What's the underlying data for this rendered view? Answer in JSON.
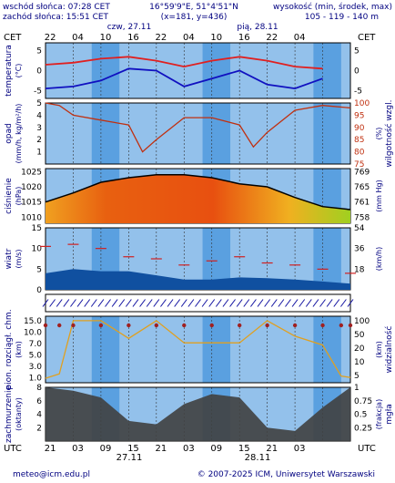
{
  "header": {
    "sunrise": "wschód słońca: 07:28 CET",
    "sunset": "zachód słońca: 15:51 CET",
    "coords": "16°59'9\"E, 51°4'51\"N",
    "grid": "(x=181, y=436)",
    "height_label": "wysokość (min, środek, max)",
    "height_values": "105 - 119 - 140 m"
  },
  "axes": {
    "top_tz": "CET",
    "bottom_tz": "UTC",
    "top_hours": [
      "22",
      "04",
      "10",
      "16",
      "22",
      "04",
      "10",
      "16",
      "22",
      "04"
    ],
    "bottom_hours": [
      "21",
      "03",
      "09",
      "15",
      "21",
      "03",
      "09",
      "15",
      "21",
      "03"
    ],
    "day_top_1": "czw, 27.11",
    "day_top_2": "pią, 28.11",
    "day_bottom_1": "27.11",
    "day_bottom_2": "28.11"
  },
  "footer": {
    "email": "meteo@icm.edu.pl",
    "copyright": "© 2007-2025 ICM, Uniwersytet Warszawski"
  },
  "colors": {
    "sky": "#5aa0e0",
    "night_band": "#d8d8d8",
    "temp_red": "#e02020",
    "temp_blue": "#1010c0",
    "pressure_line": "#000000",
    "humidity": "#c03010",
    "cloud_gray": "#404040",
    "fog": "#e0a020"
  },
  "chart_data": [
    {
      "type": "line",
      "panel": "temperature",
      "ylabel": "temperatura",
      "yunit": "(°C)",
      "ylim": [
        -7,
        7
      ],
      "ticks": [
        5,
        0,
        -5
      ],
      "hours": [
        0,
        6,
        12,
        18,
        24,
        30,
        36,
        42,
        48,
        54,
        60
      ],
      "series": [
        {
          "values": [
            1.5,
            2.0,
            3.0,
            3.5,
            2.5,
            1.0,
            2.5,
            3.5,
            2.5,
            1.0,
            0.5
          ]
        },
        {
          "values": [
            -4.5,
            -4.0,
            -2.5,
            0.5,
            0.0,
            -4.0,
            -2.0,
            0.0,
            -3.5,
            -4.5,
            -2.0
          ]
        }
      ]
    },
    {
      "type": "line",
      "panel": "precipitation-humidity",
      "ylabel": "opad",
      "yunit": "(mm/h, kg/m²/h)",
      "y2label": "wilgotność wzgl.",
      "y2unit": "(%)",
      "ylim": [
        0,
        5
      ],
      "ticks": [
        5,
        4,
        3,
        2,
        1
      ],
      "y2ticks": [
        100,
        95,
        90,
        85,
        80,
        75
      ],
      "hours": [
        0,
        3,
        6,
        12,
        18,
        21,
        24,
        30,
        36,
        42,
        45,
        48,
        54,
        60,
        66
      ],
      "humidity": [
        100,
        99,
        95,
        93,
        91,
        80,
        85,
        94,
        94,
        91,
        82,
        88,
        97,
        99,
        98
      ]
    },
    {
      "type": "area",
      "panel": "pressure",
      "ylabel": "ciśnienie",
      "yunit": "(hPa)",
      "y2unit": "(mm Hg)",
      "ylim": [
        1008,
        1026
      ],
      "ticks": [
        1025,
        1020,
        1015,
        1010
      ],
      "y2ticks": [
        "769",
        "765",
        "761",
        "758"
      ],
      "hours": [
        0,
        6,
        12,
        18,
        24,
        30,
        36,
        42,
        48,
        54,
        60,
        66
      ],
      "values": [
        1015.0,
        1018.0,
        1021.5,
        1023.0,
        1024.0,
        1024.0,
        1023.0,
        1021.0,
        1020.0,
        1016.5,
        1013.5,
        1012.5
      ]
    },
    {
      "type": "area",
      "panel": "wind",
      "ylabel": "wiatr",
      "yunit": "(m/s)",
      "y2unit": "(km/h)",
      "ylim": [
        0,
        15
      ],
      "ticks": [
        15,
        10,
        5,
        0
      ],
      "y2ticks": [
        "54",
        "36",
        "18"
      ],
      "hours": [
        0,
        6,
        12,
        18,
        24,
        30,
        36,
        42,
        48,
        54,
        60,
        66
      ],
      "values": [
        4.0,
        5.0,
        4.5,
        4.5,
        3.5,
        2.5,
        2.5,
        3.0,
        2.8,
        2.5,
        2.0,
        1.5
      ],
      "gusts": [
        10.5,
        11.0,
        10.0,
        8.0,
        7.5,
        6.0,
        7.0,
        8.0,
        6.5,
        6.0,
        5.0,
        4.0
      ]
    },
    {
      "type": "scatter",
      "panel": "visibility",
      "ylabel": "pion. rozciągł. chm.",
      "yunit": "(km)",
      "y2label": "widzialność",
      "y2unit": "(km)",
      "ylim": [
        0,
        15
      ],
      "ticks": [
        "15.0",
        "10.0",
        "7.0",
        "5.0",
        "3.0",
        "1.0"
      ],
      "y2ticks": [
        "100",
        "50",
        "20",
        "10",
        "5"
      ],
      "hours": [
        0,
        3,
        6,
        12,
        18,
        24,
        30,
        36,
        42,
        48,
        54,
        60,
        64,
        66
      ],
      "visibility": [
        1.0,
        2.0,
        14.0,
        14.0,
        10.0,
        14.0,
        9.0,
        9.0,
        9.0,
        14.0,
        10.5,
        8.5,
        1.5,
        1.2
      ]
    },
    {
      "type": "area",
      "panel": "clouds",
      "ylabel": "zachmurzenie",
      "yunit": "(oktanty)",
      "y2label": "mgła",
      "y2unit": "(frakcja)",
      "ylim": [
        0,
        8
      ],
      "ticks": [
        8,
        6,
        4,
        2
      ],
      "y2ticks": [
        "1",
        "0.75",
        "0.5",
        "0.25"
      ],
      "hours": [
        0,
        6,
        12,
        18,
        24,
        30,
        36,
        42,
        48,
        54,
        60,
        66
      ],
      "values": [
        8.0,
        7.5,
        6.5,
        3.0,
        2.5,
        5.5,
        7.0,
        6.5,
        2.0,
        1.5,
        5.0,
        8.0
      ]
    }
  ]
}
